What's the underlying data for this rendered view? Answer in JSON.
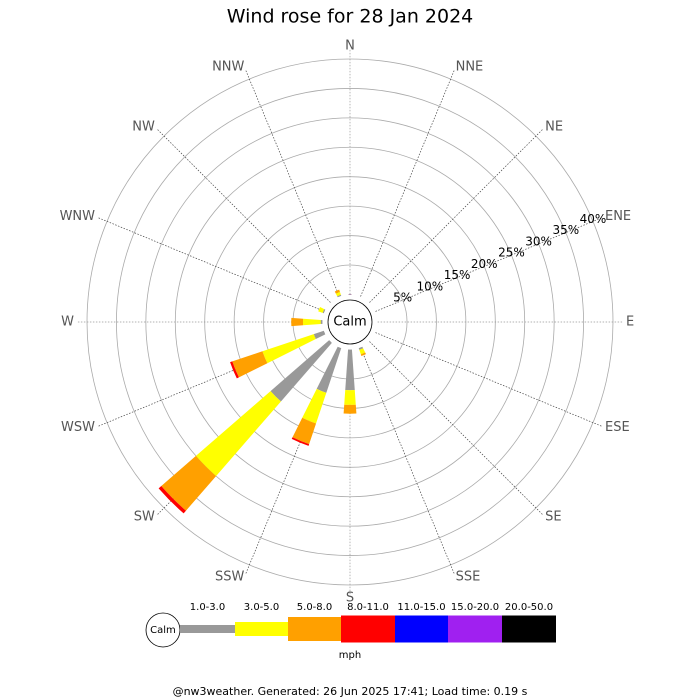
{
  "chart_data": {
    "type": "windrose",
    "title": "Wind rose for 28 Jan 2024",
    "calm_label": "Calm",
    "categories": [
      "N",
      "NNE",
      "NE",
      "ENE",
      "E",
      "ESE",
      "SE",
      "SSE",
      "S",
      "SSW",
      "SW",
      "WSW",
      "W",
      "WNW",
      "NW",
      "NNW"
    ],
    "series": [
      {
        "name": "1.0-3.0",
        "color": "#999999",
        "values": [
          0,
          0,
          0,
          0,
          0,
          0,
          0,
          0.3,
          6.9,
          8,
          13.2,
          1.8,
          0.3,
          0.2,
          0,
          0.2
        ]
      },
      {
        "name": "3.0-5.0",
        "color": "#ffff00",
        "values": [
          0,
          0,
          0,
          0,
          0,
          0,
          0,
          0.8,
          2.5,
          5.5,
          16.8,
          9.2,
          3,
          0.8,
          0,
          0.5
        ]
      },
      {
        "name": "5.0-8.0",
        "color": "#ffa000",
        "values": [
          0,
          0,
          0,
          0,
          0,
          0,
          0,
          0.3,
          1.5,
          3.7,
          7.8,
          5.4,
          2,
          0,
          0,
          0.4
        ]
      },
      {
        "name": "8.0-11.0",
        "color": "#ff0000",
        "values": [
          0,
          0,
          0,
          0,
          0,
          0,
          0,
          0,
          0,
          0.3,
          0.6,
          0.4,
          0,
          0,
          0,
          0
        ]
      },
      {
        "name": "11.0-15.0",
        "color": "#0000ff",
        "values": [
          0,
          0,
          0,
          0,
          0,
          0,
          0,
          0,
          0,
          0,
          0,
          0,
          0,
          0,
          0,
          0
        ]
      },
      {
        "name": "15.0-20.0",
        "color": "#a020f0",
        "values": [
          0,
          0,
          0,
          0,
          0,
          0,
          0,
          0,
          0,
          0,
          0,
          0,
          0,
          0,
          0,
          0
        ]
      },
      {
        "name": "20.0-50.0",
        "color": "#000000",
        "values": [
          0,
          0,
          0,
          0,
          0,
          0,
          0,
          0,
          0,
          0,
          0,
          0,
          0,
          0,
          0,
          0
        ]
      }
    ],
    "rlim": [
      0,
      40
    ],
    "rticks": [
      {
        "value": 5,
        "label": "5%"
      },
      {
        "value": 10,
        "label": "10%"
      },
      {
        "value": 15,
        "label": "15%"
      },
      {
        "value": 20,
        "label": "20%"
      },
      {
        "value": 25,
        "label": "25%"
      },
      {
        "value": 30,
        "label": "30%"
      },
      {
        "value": 35,
        "label": "35%"
      },
      {
        "value": 40,
        "label": "40%"
      }
    ],
    "legend_title": "mph",
    "footer": "@nw3weather. Generated: 26 Jun 2025 17:41; Load time: 0.19 s"
  }
}
